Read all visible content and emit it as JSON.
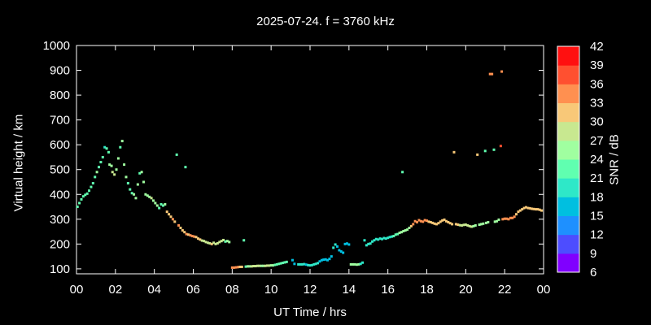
{
  "chart_data": {
    "type": "scatter",
    "title": "2025-07-24. f = 3760 kHz",
    "xlabel": "UT Time / hrs",
    "ylabel": "Virtual height / km",
    "colorbar_label": "SNR / dB",
    "xlim": [
      0,
      24
    ],
    "ylim": [
      80,
      1000
    ],
    "xtick_labels": [
      "00",
      "02",
      "04",
      "06",
      "08",
      "10",
      "12",
      "14",
      "16",
      "18",
      "20",
      "22",
      "00"
    ],
    "ytick_values": [
      100,
      200,
      300,
      400,
      500,
      600,
      700,
      800,
      900,
      1000
    ],
    "colorbar_ticks": [
      6,
      9,
      12,
      15,
      18,
      21,
      24,
      27,
      30,
      33,
      36,
      39,
      42
    ],
    "colorbar_range": [
      6,
      42
    ],
    "colorbar_colors": [
      "#8000ff",
      "#4d4dff",
      "#1e90ff",
      "#00bfe0",
      "#2ee8c8",
      "#60ffb0",
      "#a0ffa0",
      "#c8e890",
      "#f8c878",
      "#ff9050",
      "#ff5030",
      "#ff1010"
    ],
    "points": [
      [
        0.05,
        350,
        22
      ],
      [
        0.15,
        365,
        22
      ],
      [
        0.25,
        380,
        22
      ],
      [
        0.35,
        392,
        22
      ],
      [
        0.45,
        398,
        22
      ],
      [
        0.55,
        403,
        23
      ],
      [
        0.65,
        415,
        23
      ],
      [
        0.75,
        430,
        23
      ],
      [
        0.85,
        445,
        22
      ],
      [
        0.95,
        470,
        22
      ],
      [
        1.05,
        490,
        24
      ],
      [
        1.15,
        510,
        23
      ],
      [
        1.25,
        530,
        22
      ],
      [
        1.35,
        550,
        22
      ],
      [
        1.45,
        590,
        20
      ],
      [
        1.55,
        585,
        22
      ],
      [
        1.65,
        570,
        22
      ],
      [
        1.7,
        520,
        24
      ],
      [
        1.8,
        515,
        24
      ],
      [
        1.85,
        490,
        27
      ],
      [
        1.95,
        480,
        27
      ],
      [
        2.05,
        500,
        24
      ],
      [
        2.15,
        545,
        24
      ],
      [
        2.25,
        590,
        22
      ],
      [
        2.35,
        615,
        24
      ],
      [
        2.45,
        520,
        24
      ],
      [
        2.55,
        470,
        24
      ],
      [
        2.65,
        445,
        22
      ],
      [
        2.75,
        420,
        22
      ],
      [
        2.85,
        405,
        22
      ],
      [
        2.95,
        400,
        24
      ],
      [
        3.05,
        385,
        24
      ],
      [
        3.15,
        440,
        24
      ],
      [
        3.25,
        485,
        22
      ],
      [
        3.35,
        490,
        24
      ],
      [
        3.45,
        450,
        24
      ],
      [
        3.55,
        400,
        24
      ],
      [
        3.65,
        395,
        24
      ],
      [
        3.75,
        390,
        24
      ],
      [
        3.85,
        385,
        27
      ],
      [
        3.95,
        375,
        24
      ],
      [
        4.05,
        365,
        24
      ],
      [
        4.15,
        355,
        24
      ],
      [
        4.25,
        345,
        22
      ],
      [
        4.35,
        360,
        22
      ],
      [
        4.45,
        355,
        22
      ],
      [
        4.55,
        360,
        24
      ],
      [
        4.65,
        330,
        30
      ],
      [
        4.75,
        320,
        30
      ],
      [
        4.85,
        310,
        30
      ],
      [
        4.95,
        300,
        33
      ],
      [
        5.05,
        290,
        30
      ],
      [
        5.15,
        560,
        22
      ],
      [
        5.25,
        275,
        33
      ],
      [
        5.35,
        265,
        30
      ],
      [
        5.45,
        255,
        30
      ],
      [
        5.55,
        248,
        30
      ],
      [
        5.6,
        510,
        22
      ],
      [
        5.65,
        240,
        33
      ],
      [
        5.75,
        238,
        30
      ],
      [
        5.85,
        235,
        33
      ],
      [
        5.95,
        232,
        33
      ],
      [
        6.05,
        230,
        33
      ],
      [
        6.15,
        228,
        30
      ],
      [
        6.25,
        222,
        30
      ],
      [
        6.35,
        218,
        30
      ],
      [
        6.45,
        214,
        27
      ],
      [
        6.55,
        212,
        27
      ],
      [
        6.65,
        208,
        27
      ],
      [
        6.75,
        205,
        27
      ],
      [
        6.85,
        203,
        27
      ],
      [
        6.95,
        200,
        30
      ],
      [
        7.05,
        205,
        27
      ],
      [
        7.15,
        200,
        27
      ],
      [
        7.25,
        203,
        27
      ],
      [
        7.35,
        208,
        27
      ],
      [
        7.45,
        212,
        27
      ],
      [
        7.55,
        216,
        27
      ],
      [
        7.65,
        210,
        22
      ],
      [
        7.75,
        212,
        24
      ],
      [
        7.85,
        208,
        24
      ],
      [
        8.0,
        105,
        33
      ],
      [
        8.1,
        105,
        33
      ],
      [
        8.2,
        106,
        33
      ],
      [
        8.3,
        107,
        33
      ],
      [
        8.4,
        108,
        30
      ],
      [
        8.5,
        108,
        30
      ],
      [
        8.6,
        215,
        22
      ],
      [
        8.7,
        109,
        22
      ],
      [
        8.8,
        110,
        24
      ],
      [
        8.9,
        110,
        24
      ],
      [
        9.0,
        110,
        27
      ],
      [
        9.1,
        111,
        27
      ],
      [
        9.2,
        111,
        27
      ],
      [
        9.3,
        112,
        27
      ],
      [
        9.4,
        112,
        27
      ],
      [
        9.5,
        112,
        24
      ],
      [
        9.6,
        112,
        24
      ],
      [
        9.7,
        112,
        27
      ],
      [
        9.8,
        113,
        27
      ],
      [
        9.9,
        113,
        27
      ],
      [
        10.0,
        114,
        24
      ],
      [
        10.1,
        114,
        24
      ],
      [
        10.2,
        116,
        22
      ],
      [
        10.3,
        118,
        22
      ],
      [
        10.4,
        120,
        22
      ],
      [
        10.5,
        122,
        22
      ],
      [
        10.6,
        124,
        22
      ],
      [
        10.7,
        126,
        22
      ],
      [
        10.8,
        128,
        22
      ],
      [
        11.1,
        135,
        15
      ],
      [
        11.2,
        120,
        15
      ],
      [
        11.4,
        118,
        18
      ],
      [
        11.5,
        118,
        18
      ],
      [
        11.6,
        118,
        18
      ],
      [
        11.7,
        119,
        18
      ],
      [
        11.8,
        117,
        15
      ],
      [
        11.9,
        115,
        18
      ],
      [
        12.0,
        114,
        18
      ],
      [
        12.1,
        115,
        18
      ],
      [
        12.2,
        118,
        18
      ],
      [
        12.3,
        120,
        18
      ],
      [
        12.4,
        123,
        18
      ],
      [
        12.5,
        130,
        15
      ],
      [
        12.6,
        135,
        15
      ],
      [
        12.7,
        137,
        15
      ],
      [
        12.8,
        138,
        15
      ],
      [
        12.9,
        135,
        15
      ],
      [
        13.0,
        140,
        15
      ],
      [
        13.1,
        150,
        15
      ],
      [
        13.2,
        185,
        18
      ],
      [
        13.3,
        198,
        18
      ],
      [
        13.4,
        190,
        15
      ],
      [
        13.5,
        175,
        15
      ],
      [
        13.6,
        170,
        15
      ],
      [
        13.7,
        165,
        15
      ],
      [
        13.8,
        200,
        15
      ],
      [
        13.9,
        202,
        15
      ],
      [
        14.0,
        198,
        15
      ],
      [
        14.1,
        118,
        24
      ],
      [
        14.2,
        118,
        24
      ],
      [
        14.3,
        118,
        24
      ],
      [
        14.4,
        117,
        24
      ],
      [
        14.5,
        118,
        24
      ],
      [
        14.6,
        120,
        18
      ],
      [
        14.7,
        125,
        18
      ],
      [
        14.8,
        215,
        18
      ],
      [
        14.9,
        195,
        18
      ],
      [
        15.0,
        200,
        18
      ],
      [
        15.1,
        202,
        18
      ],
      [
        15.2,
        210,
        18
      ],
      [
        15.3,
        215,
        18
      ],
      [
        15.4,
        220,
        18
      ],
      [
        15.5,
        218,
        18
      ],
      [
        15.6,
        222,
        18
      ],
      [
        15.7,
        220,
        18
      ],
      [
        15.8,
        224,
        18
      ],
      [
        15.9,
        222,
        18
      ],
      [
        16.0,
        225,
        18
      ],
      [
        16.1,
        228,
        18
      ],
      [
        16.2,
        230,
        18
      ],
      [
        16.3,
        232,
        22
      ],
      [
        16.4,
        238,
        22
      ],
      [
        16.5,
        240,
        22
      ],
      [
        16.6,
        245,
        24
      ],
      [
        16.7,
        248,
        24
      ],
      [
        16.75,
        490,
        22
      ],
      [
        16.8,
        252,
        24
      ],
      [
        16.9,
        255,
        24
      ],
      [
        17.0,
        258,
        24
      ],
      [
        17.1,
        265,
        24
      ],
      [
        17.2,
        272,
        30
      ],
      [
        17.3,
        280,
        33
      ],
      [
        17.4,
        292,
        33
      ],
      [
        17.5,
        288,
        33
      ],
      [
        17.6,
        296,
        33
      ],
      [
        17.7,
        292,
        33
      ],
      [
        17.8,
        290,
        33
      ],
      [
        17.9,
        296,
        33
      ],
      [
        18.0,
        294,
        33
      ],
      [
        18.1,
        290,
        30
      ],
      [
        18.2,
        288,
        30
      ],
      [
        18.3,
        285,
        30
      ],
      [
        18.4,
        282,
        30
      ],
      [
        18.5,
        280,
        30
      ],
      [
        18.6,
        284,
        30
      ],
      [
        18.7,
        290,
        30
      ],
      [
        18.8,
        295,
        30
      ],
      [
        18.9,
        298,
        30
      ],
      [
        19.0,
        292,
        30
      ],
      [
        19.1,
        288,
        30
      ],
      [
        19.2,
        284,
        30
      ],
      [
        19.3,
        280,
        30
      ],
      [
        19.4,
        570,
        30
      ],
      [
        19.5,
        280,
        30
      ],
      [
        19.6,
        278,
        30
      ],
      [
        19.7,
        276,
        27
      ],
      [
        19.8,
        275,
        27
      ],
      [
        19.9,
        277,
        27
      ],
      [
        20.0,
        278,
        27
      ],
      [
        20.1,
        275,
        27
      ],
      [
        20.2,
        272,
        27
      ],
      [
        20.3,
        270,
        27
      ],
      [
        20.4,
        272,
        24
      ],
      [
        20.5,
        275,
        24
      ],
      [
        20.6,
        560,
        30
      ],
      [
        20.7,
        278,
        24
      ],
      [
        20.8,
        280,
        24
      ],
      [
        20.9,
        282,
        24
      ],
      [
        21.0,
        575,
        22
      ],
      [
        21.05,
        285,
        24
      ],
      [
        21.15,
        288,
        24
      ],
      [
        21.25,
        885,
        33
      ],
      [
        21.35,
        885,
        33
      ],
      [
        21.45,
        580,
        22
      ],
      [
        21.5,
        290,
        24
      ],
      [
        21.6,
        292,
        24
      ],
      [
        21.7,
        298,
        24
      ],
      [
        21.8,
        595,
        36
      ],
      [
        21.85,
        895,
        33
      ],
      [
        21.9,
        300,
        33
      ],
      [
        22.0,
        302,
        33
      ],
      [
        22.1,
        302,
        33
      ],
      [
        22.2,
        300,
        33
      ],
      [
        22.3,
        305,
        33
      ],
      [
        22.4,
        305,
        33
      ],
      [
        22.5,
        310,
        33
      ],
      [
        22.6,
        320,
        30
      ],
      [
        22.7,
        330,
        30
      ],
      [
        22.8,
        335,
        30
      ],
      [
        22.9,
        340,
        30
      ],
      [
        23.0,
        345,
        30
      ],
      [
        23.1,
        348,
        30
      ],
      [
        23.2,
        345,
        30
      ],
      [
        23.3,
        344,
        30
      ],
      [
        23.4,
        342,
        30
      ],
      [
        23.5,
        341,
        30
      ],
      [
        23.6,
        340,
        30
      ],
      [
        23.7,
        340,
        30
      ],
      [
        23.8,
        338,
        30
      ],
      [
        23.9,
        335,
        30
      ]
    ]
  }
}
